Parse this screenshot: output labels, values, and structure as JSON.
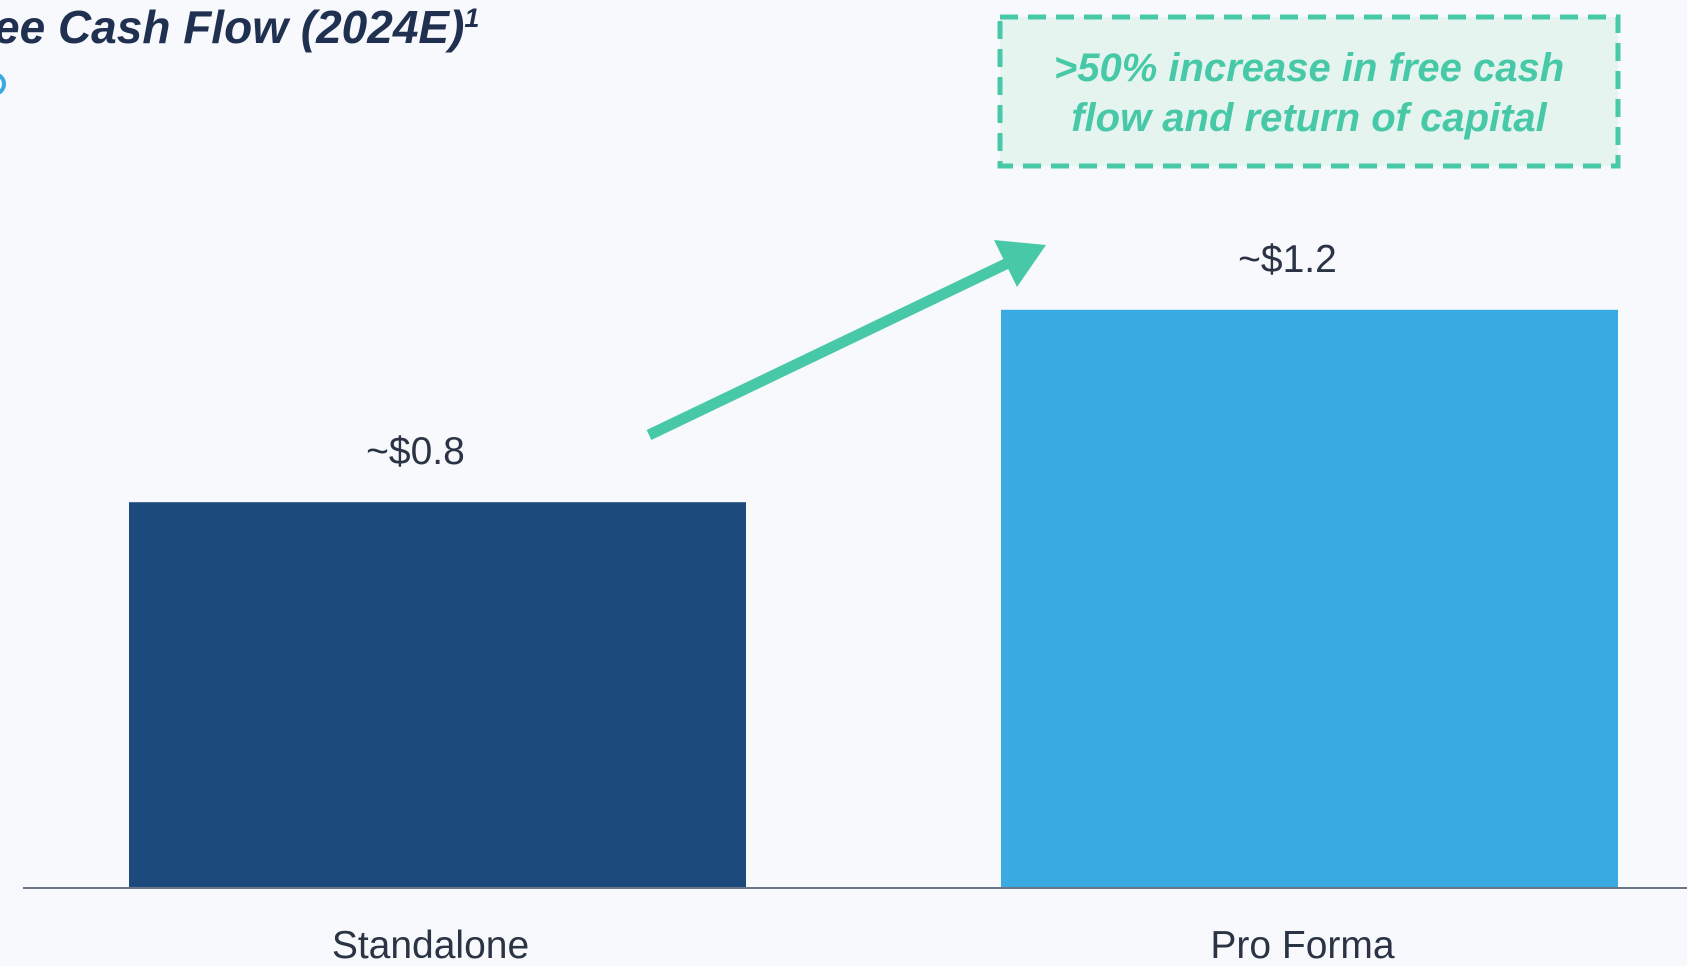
{
  "chart_data": {
    "type": "bar",
    "title": "ee Cash Flow (2024E)",
    "title_footnote": "1",
    "annotation": [
      ">50% increase in free cash",
      "flow and return of capital"
    ],
    "categories": [
      "Standalone",
      "Pro Forma"
    ],
    "values": [
      0.8,
      1.2
    ],
    "value_labels": [
      "~$0.8",
      "~$1.2"
    ],
    "colors": [
      "#1d4a7c",
      "#3aabe2"
    ]
  }
}
